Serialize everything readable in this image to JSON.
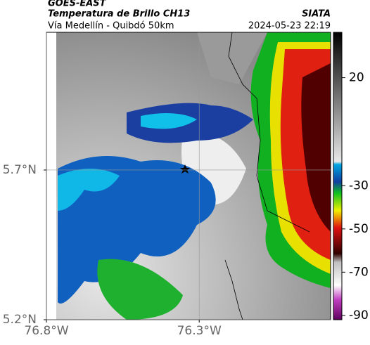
{
  "header": {
    "title": "GOES-EAST",
    "subtitle": "Temperatura de Brillo CH13",
    "source": "SIATA",
    "route": "Vía Medellín - Quibdó 50km",
    "timestamp": "2024-05-23 22:19"
  },
  "map": {
    "xlim": [
      -76.8,
      -75.87
    ],
    "ylim": [
      5.2,
      6.16
    ],
    "xticks": [
      {
        "value": -76.8,
        "label": "76.8°W"
      },
      {
        "value": -76.3,
        "label": "76.3°W"
      }
    ],
    "yticks": [
      {
        "value": 5.7,
        "label": "5.7°N"
      },
      {
        "value": 5.2,
        "label": "5.2°N"
      }
    ],
    "grid": true
  },
  "colorbar": {
    "lim": [
      -92,
      41
    ],
    "ticks": [
      20,
      -30,
      -50,
      -70,
      -90
    ]
  }
}
